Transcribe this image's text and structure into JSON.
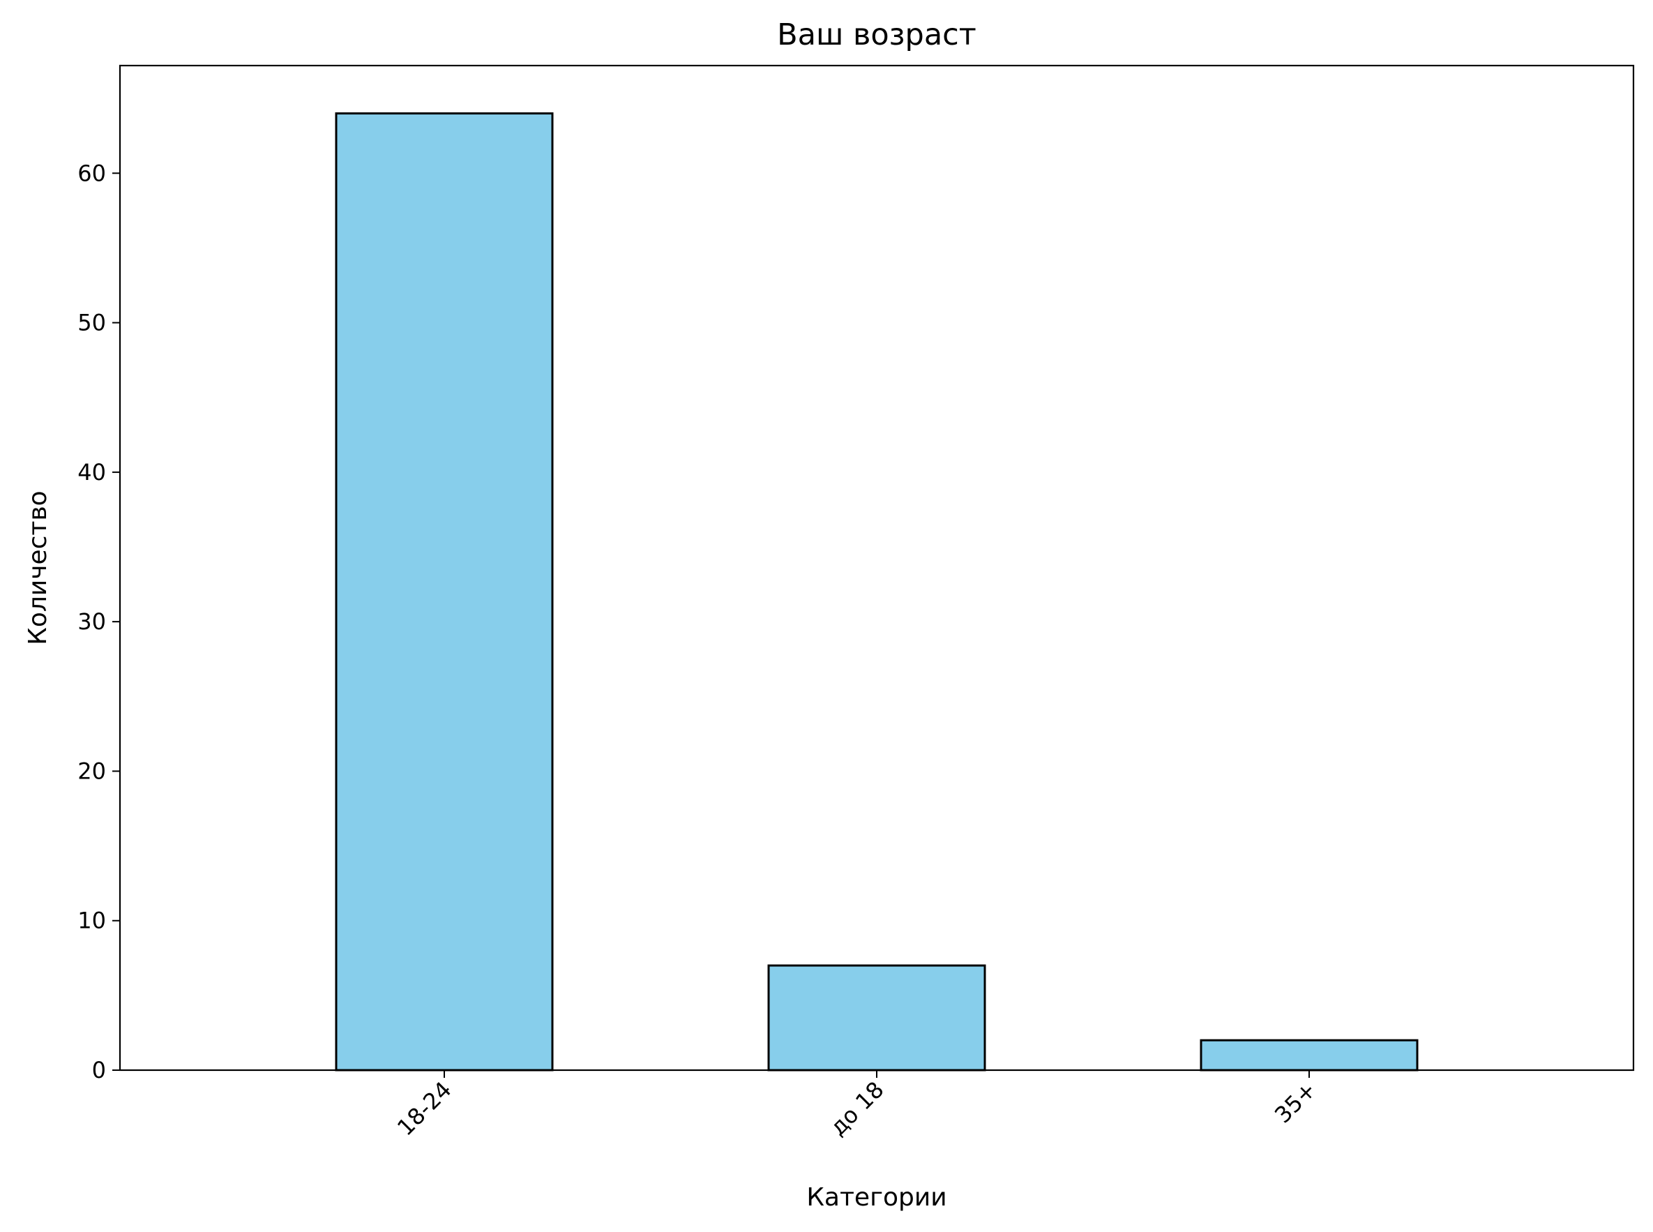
{
  "chart_data": {
    "type": "bar",
    "title": "Ваш возраст",
    "xlabel": "Категории",
    "ylabel": "Количество",
    "categories": [
      "18-24",
      "до 18",
      "35+"
    ],
    "values": [
      64,
      7,
      2
    ],
    "ylim": [
      0,
      67.2
    ],
    "yticks": [
      0,
      10,
      20,
      30,
      40,
      50,
      60
    ],
    "grid": false,
    "legend": "none",
    "bar_color": "#87ceeb",
    "edge_color": "#000000"
  }
}
